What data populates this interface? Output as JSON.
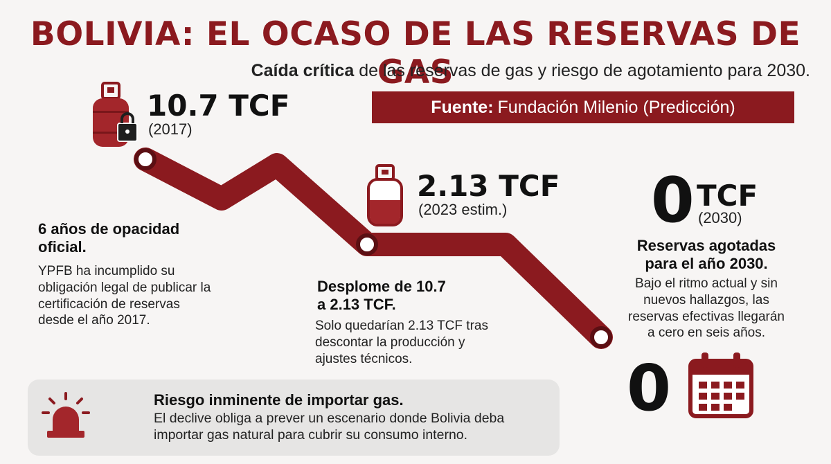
{
  "title": "BOLIVIA: EL OCASO DE LAS RESERVAS DE GAS",
  "subtitle": {
    "bold": "Caída crítica",
    "rest": "de las reservas de gas y riesgo de agotamiento para 2030."
  },
  "source": {
    "label": "Fuente:",
    "value": "Fundación Milenio (Predicción)"
  },
  "points": [
    {
      "value": "10.7 TCF",
      "year": "(2017)"
    },
    {
      "value": "2.13 TCF",
      "year": "(2023 estim.)"
    },
    {
      "value_big": "0",
      "value_unit": "TCF",
      "year": "(2030)"
    }
  ],
  "sections": {
    "opacity": {
      "heading": [
        "6 años de opacidad",
        "oficial."
      ],
      "body": [
        "YPFB ha incumplido su",
        "obligación legal de publicar la",
        "certificación de reservas",
        "desde el año 2017."
      ]
    },
    "drop": {
      "heading": [
        "Desplome de 10.7",
        "a 2.13 TCF."
      ],
      "body": [
        "Solo quedarían 2.13 TCF tras",
        "descontar la producción y",
        "ajustes técnicos."
      ]
    },
    "depleted": {
      "heading": [
        "Reservas agotadas",
        "para el año 2030."
      ],
      "body": [
        "Bajo el ritmo actual y sin",
        "nuevos hallazgos, las",
        "reservas efectivas llegarán",
        "a cero en seis años."
      ]
    },
    "import_risk": {
      "heading": "Riesgo inminente de importar gas.",
      "body": [
        "El declive obliga a prever un escenario donde Bolivia deba",
        "importar gas natural para cubrir su consumo interno."
      ]
    }
  },
  "calendar_zero": "0",
  "icons": [
    "gas-cylinder-lock-icon",
    "gas-cylinder-icon",
    "calendar-icon",
    "alarm-siren-icon"
  ],
  "colors": {
    "accent": "#8b1a1f",
    "background": "#f7f5f4",
    "panel": "#e6e5e4"
  }
}
